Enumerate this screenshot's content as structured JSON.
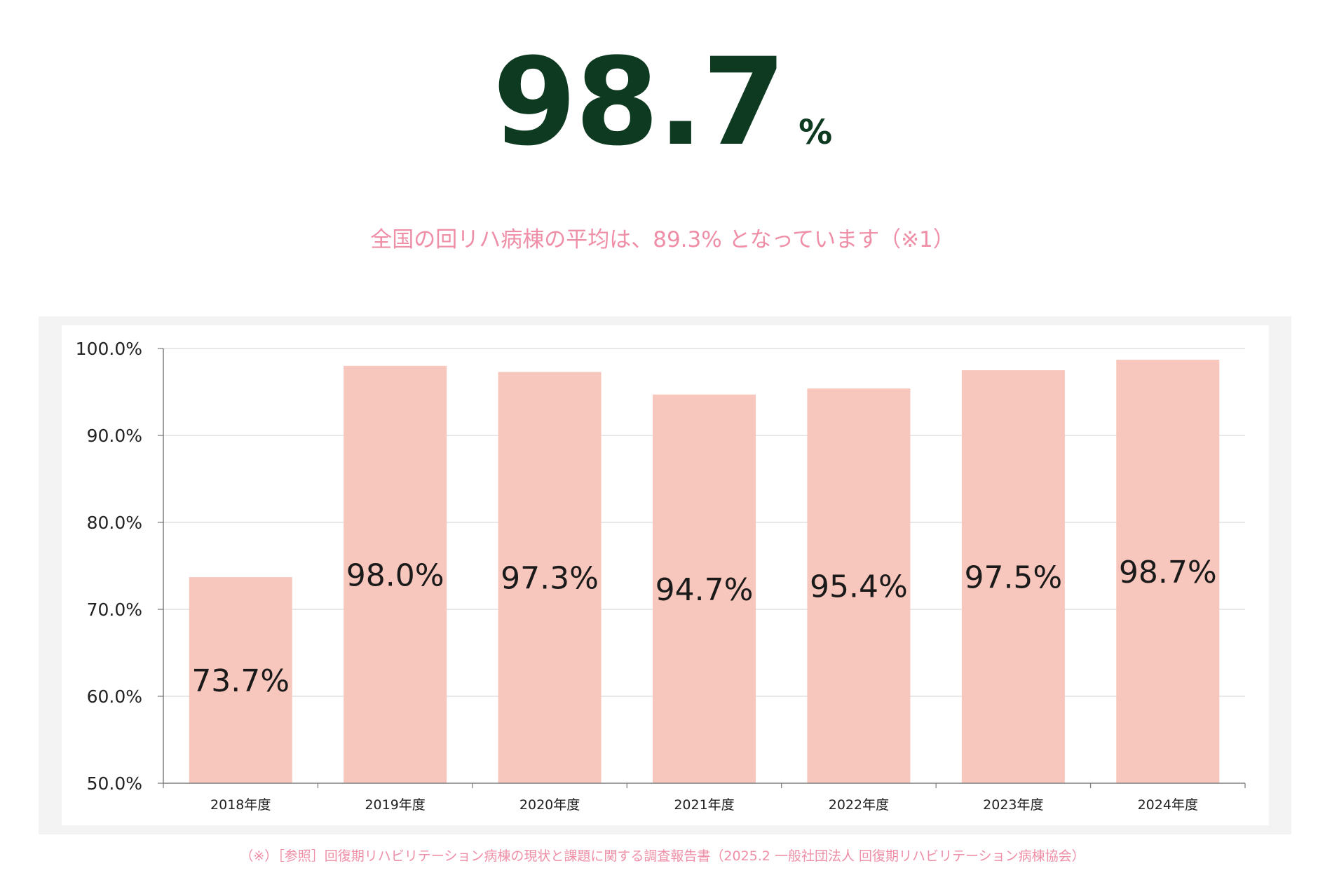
{
  "headline": {
    "value": "98.7",
    "unit": "%"
  },
  "subtitle": "全国の回リハ病棟の平均は、89.3% となっています（※1）",
  "footnote": "（※）［参照］回復期リハビリテーション病棟の現状と課題に関する調査報告書（2025.2 一般社団法人 回復期リハビリテーション病棟協会）",
  "colors": {
    "bar": "#f7c6bc",
    "headline": "#0f3a22",
    "accent_text": "#ee8fa7"
  },
  "chart_data": {
    "type": "bar",
    "categories": [
      "2018年度",
      "2019年度",
      "2020年度",
      "2021年度",
      "2022年度",
      "2023年度",
      "2024年度"
    ],
    "values": [
      73.7,
      98.0,
      97.3,
      94.7,
      95.4,
      97.5,
      98.7
    ],
    "data_labels": [
      "73.7%",
      "98.0%",
      "97.3%",
      "94.7%",
      "95.4%",
      "97.5%",
      "98.7%"
    ],
    "ylim": [
      50,
      100
    ],
    "yticks": [
      50,
      60,
      70,
      80,
      90,
      100
    ],
    "ytick_labels": [
      "50.0%",
      "60.0%",
      "70.0%",
      "80.0%",
      "90.0%",
      "100.0%"
    ],
    "grid": true,
    "legend": "none"
  }
}
